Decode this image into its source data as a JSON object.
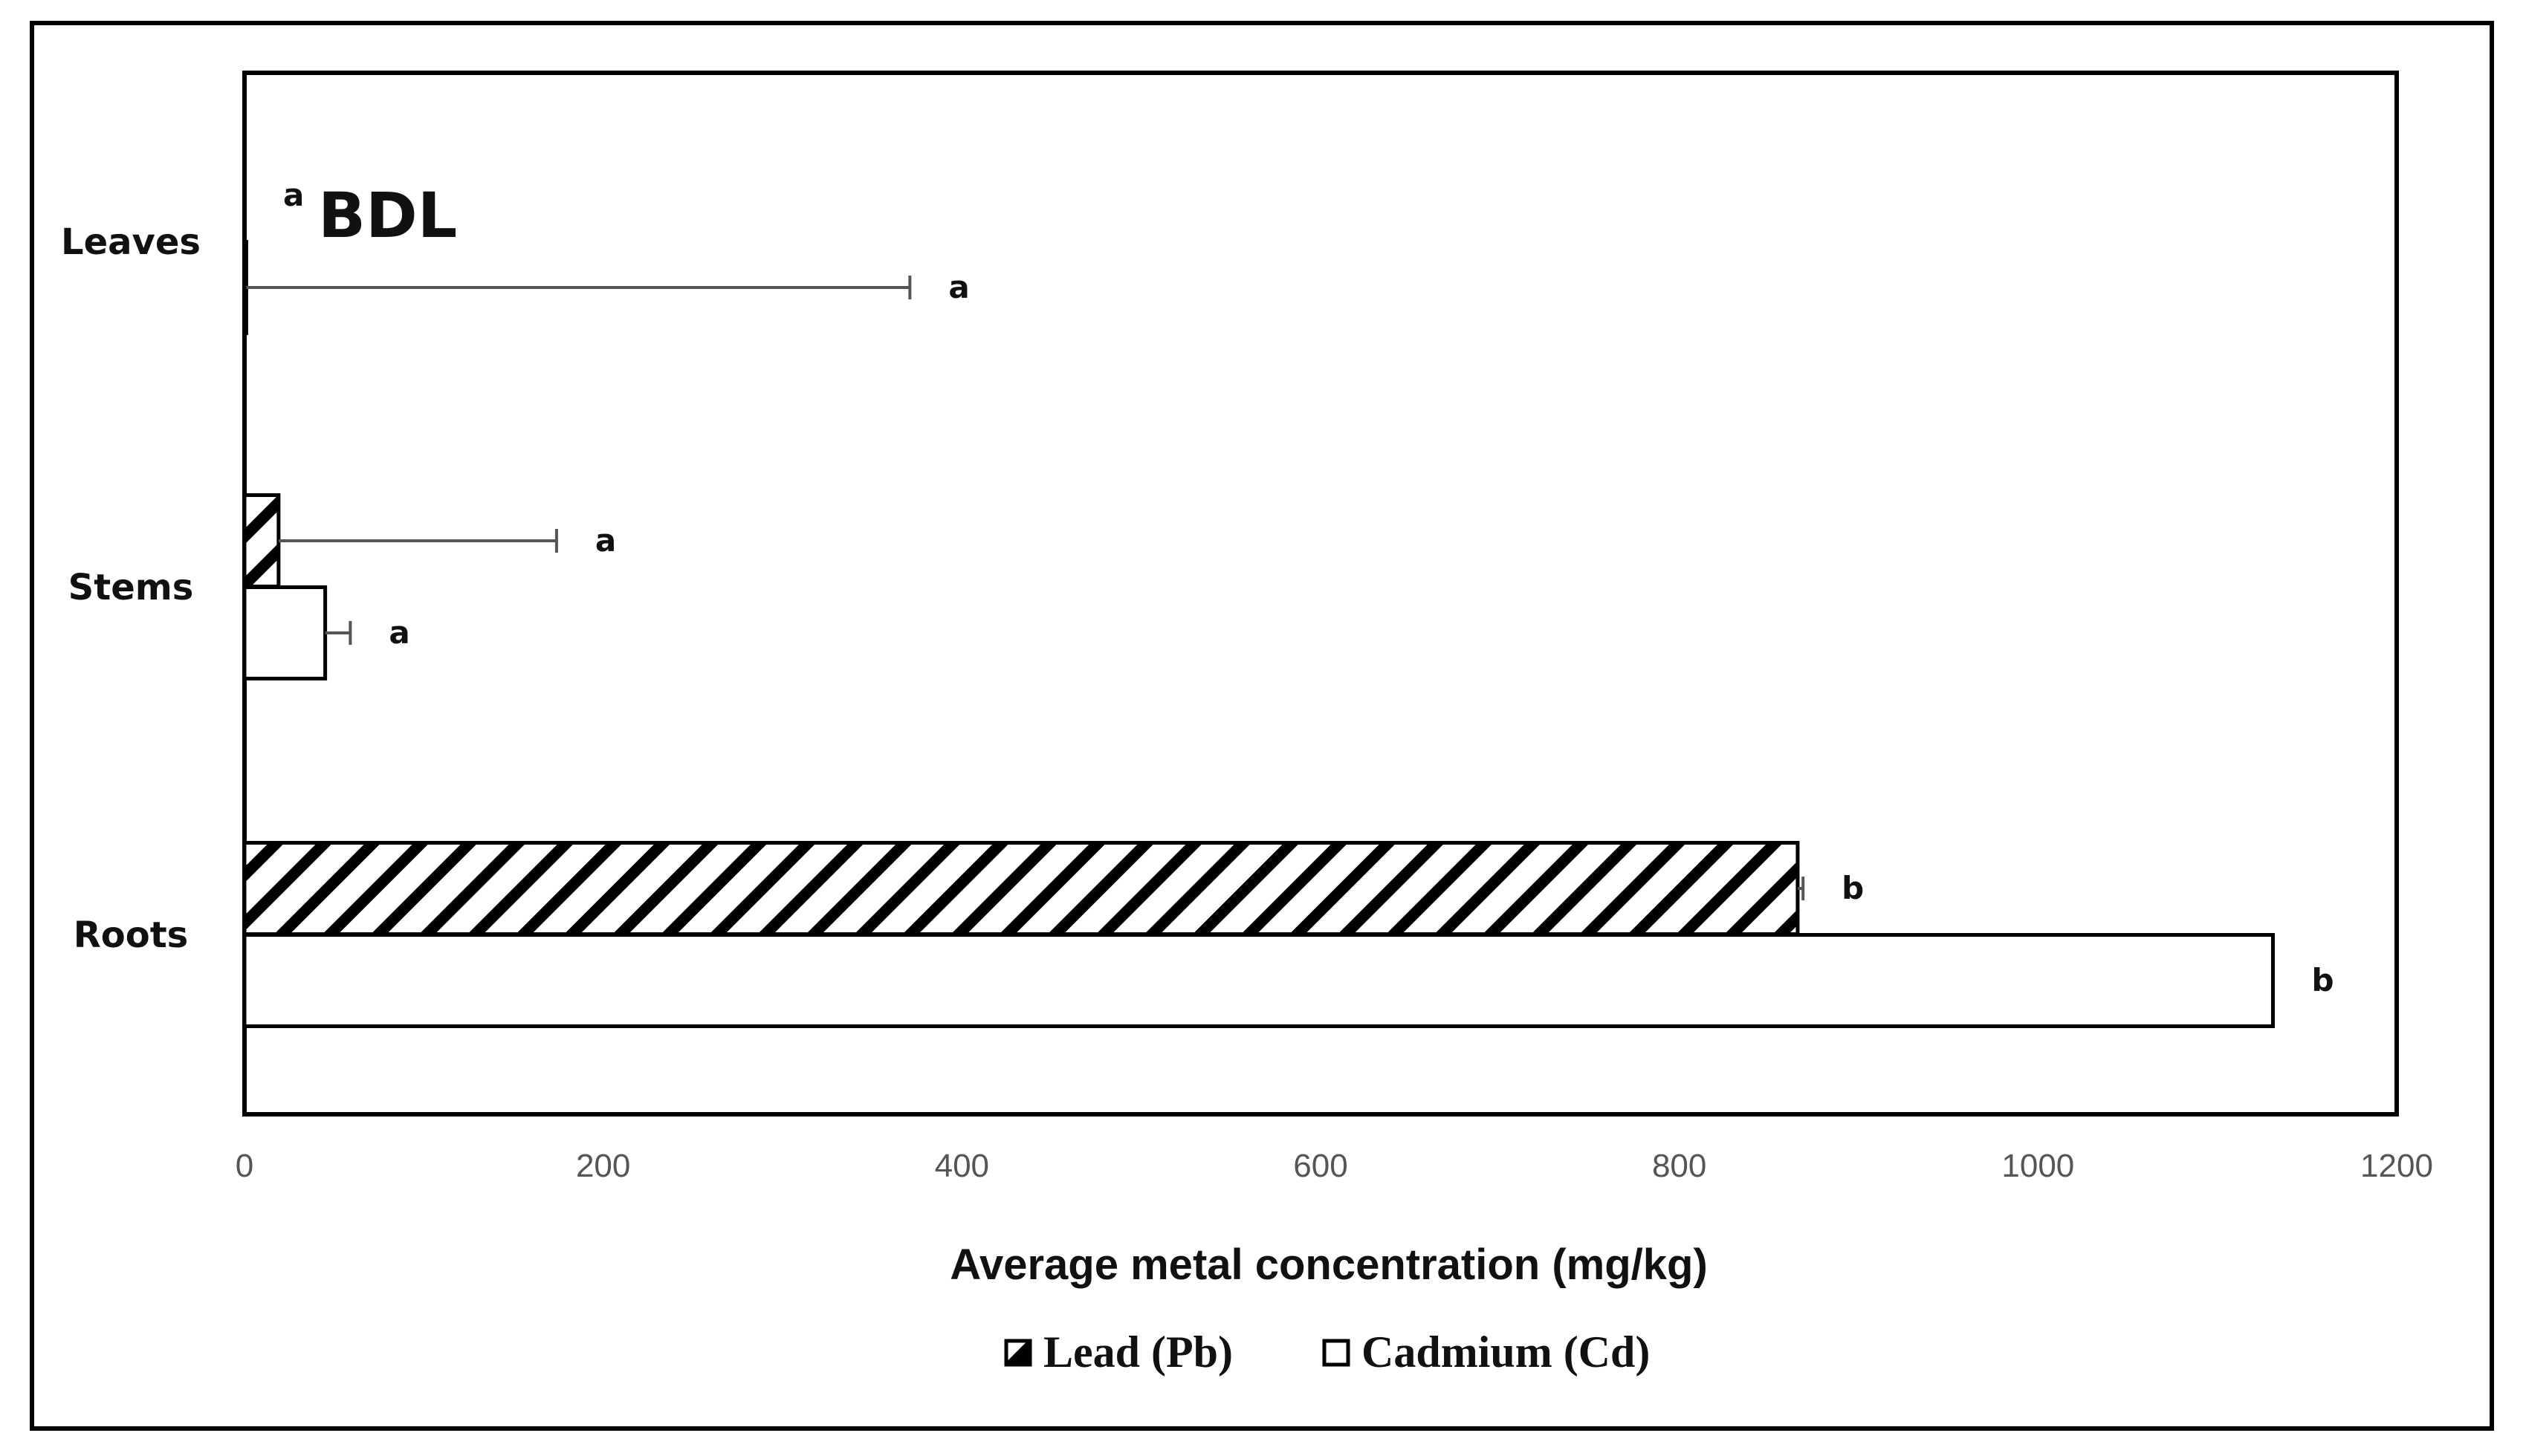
{
  "chart_data": {
    "type": "bar",
    "orientation": "horizontal",
    "categories": [
      "Leaves",
      "Stems",
      "Roots"
    ],
    "series": [
      {
        "name": "Lead (Pb)",
        "pattern": "diagonal-hatch",
        "values": [
          0,
          19,
          866
        ],
        "errors": [
          0,
          155,
          3
        ],
        "letters": [
          "a",
          "a",
          "b"
        ]
      },
      {
        "name": "Cadmium (Cd)",
        "pattern": "solid-white",
        "values": [
          1,
          45,
          1131
        ],
        "errors": [
          370,
          14,
          0
        ],
        "letters": [
          "a",
          "a",
          "b"
        ]
      }
    ],
    "annotations": [
      {
        "text": "BDL",
        "category": "Leaves"
      }
    ],
    "xlabel": "Average metal concentration (mg/kg)",
    "ylabel": "",
    "xlim": [
      0,
      1200
    ],
    "xticks": [
      "0",
      "200",
      "400",
      "600",
      "800",
      "1000",
      "1200"
    ],
    "grid": false,
    "legend_position": "bottom",
    "colors": {
      "bar_stroke": "#000000",
      "bar_fill": "#ffffff",
      "error_bar": "#555555",
      "axis_text": "#555555"
    }
  }
}
